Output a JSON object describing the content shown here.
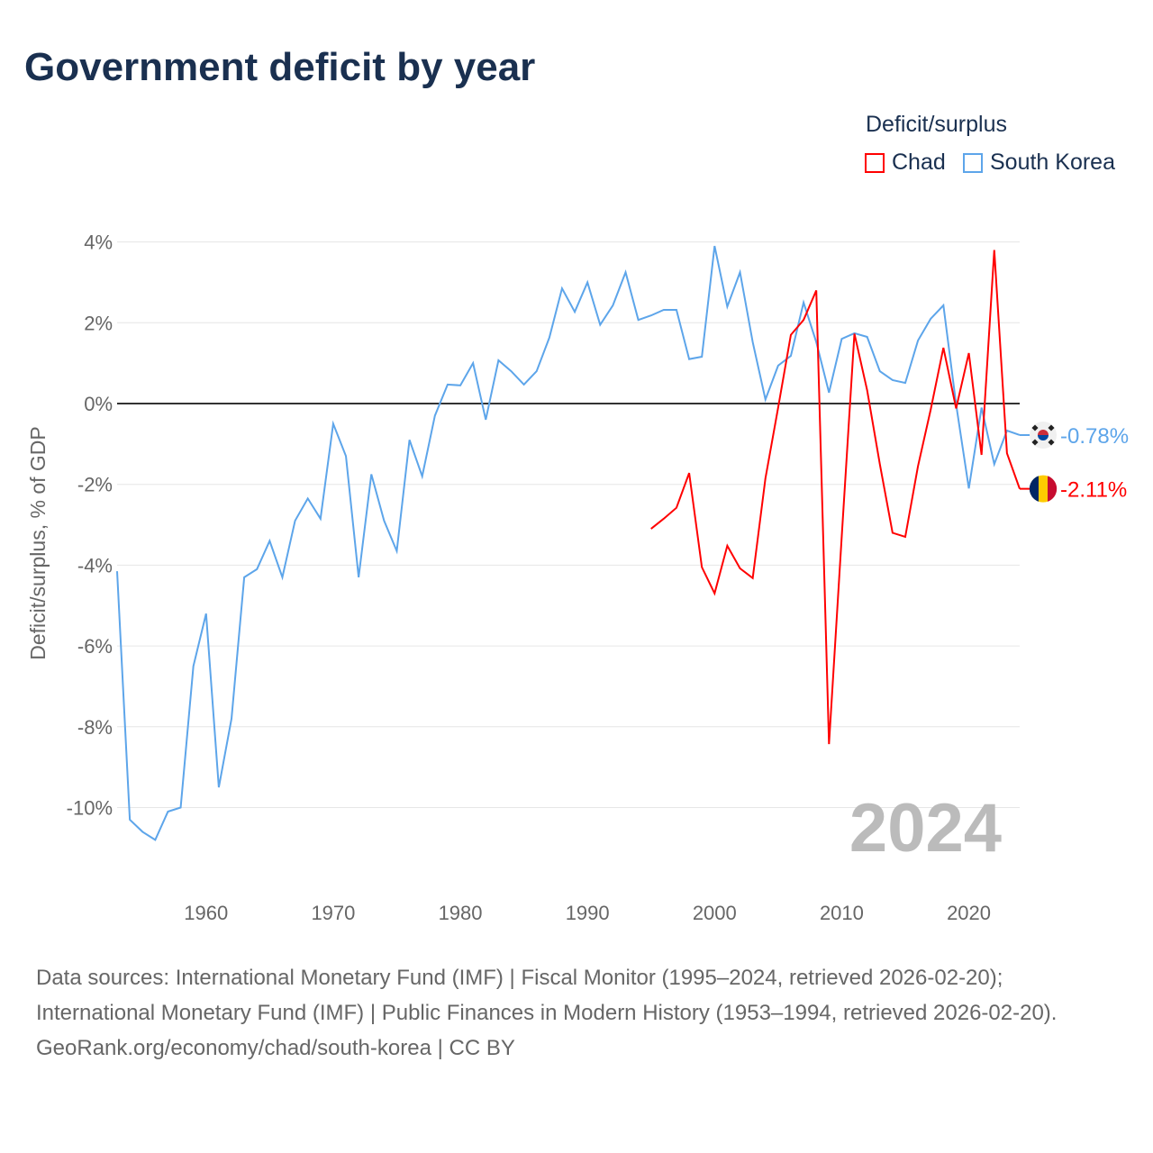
{
  "chart_data": {
    "type": "line",
    "title": "Government deficit by year",
    "ylabel": "Deficit/surplus, % of GDP",
    "xlabel": "",
    "ylim": [
      -11.8,
      4.5
    ],
    "xlim": [
      1953,
      2024
    ],
    "yticks": [
      4,
      2,
      0,
      -2,
      -4,
      -6,
      -8,
      -10
    ],
    "ytick_labels": [
      "4%",
      "2%",
      "0%",
      "-2%",
      "-4%",
      "-6%",
      "-8%",
      "-10%"
    ],
    "xticks": [
      1960,
      1970,
      1980,
      1990,
      2000,
      2010,
      2020
    ],
    "xtick_labels": [
      "1960",
      "1970",
      "1980",
      "1990",
      "2000",
      "2010",
      "2020"
    ],
    "grid": true,
    "legend_title": "Deficit/surplus",
    "legend_position": "top-right",
    "year_label": "2024",
    "series": [
      {
        "name": "Chad",
        "color": "#ff0000",
        "end_label": "-2.11%",
        "start": 1995,
        "values": [
          -3.1,
          -2.85,
          -2.58,
          -1.72,
          -4.05,
          -4.7,
          -3.52,
          -4.08,
          -4.32,
          -1.85,
          -0.1,
          1.7,
          2.07,
          2.8,
          -8.43,
          -3.3,
          1.73,
          0.33,
          -1.5,
          -3.2,
          -3.3,
          -1.55,
          -0.15,
          1.38,
          -0.12,
          1.25,
          -1.27,
          3.8,
          -1.23,
          -2.11
        ]
      },
      {
        "name": "South Korea",
        "color": "#5da5ea",
        "end_label": "-0.78%",
        "start": 1953,
        "values": [
          -4.15,
          -10.3,
          -10.6,
          -10.8,
          -10.1,
          -10.0,
          -6.5,
          -5.2,
          -9.5,
          -7.8,
          -4.3,
          -4.1,
          -3.4,
          -4.3,
          -2.9,
          -2.35,
          -2.85,
          -0.5,
          -1.3,
          -4.3,
          -1.75,
          -2.9,
          -3.65,
          -0.9,
          -1.8,
          -0.3,
          0.47,
          0.45,
          1.0,
          -0.4,
          1.07,
          0.8,
          0.47,
          0.8,
          1.63,
          2.85,
          2.27,
          3.0,
          1.95,
          2.43,
          3.25,
          2.07,
          2.18,
          2.32,
          2.32,
          1.1,
          1.16,
          3.9,
          2.4,
          3.25,
          1.52,
          0.1,
          0.94,
          1.18,
          2.5,
          1.52,
          0.27,
          1.6,
          1.74,
          1.65,
          0.8,
          0.58,
          0.51,
          1.56,
          2.1,
          2.43,
          -0.02,
          -2.1,
          -0.1,
          -1.5,
          -0.67,
          -0.78
        ]
      }
    ]
  },
  "footer": {
    "sources": "Data sources: International Monetary Fund (IMF) | Fiscal Monitor (1995–2024, retrieved 2026-02-20); International Monetary Fund (IMF) | Public Finances in Modern History (1953–1994, retrieved 2026-02-20).",
    "credit": "GeoRank.org/economy/chad/south-korea | CC BY"
  }
}
